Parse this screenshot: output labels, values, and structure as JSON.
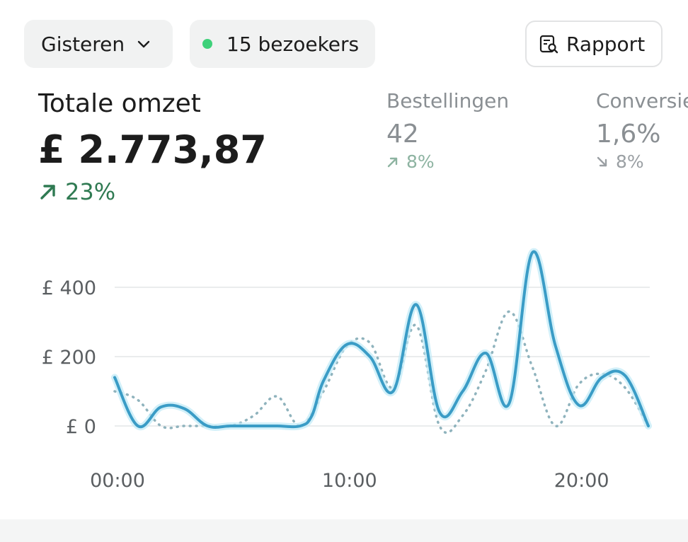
{
  "controls": {
    "date_range": "Gisteren",
    "visitors": "15 bezoekers",
    "report_button": "Rapport",
    "visitors_dot_color": "#3ed17a"
  },
  "metrics": {
    "main": {
      "label": "Totale omzet",
      "value": "£ 2.773,87",
      "delta": "23%",
      "trend": "up",
      "color": "#2f7a52"
    },
    "orders": {
      "label": "Bestellingen",
      "value": "42",
      "delta": "8%",
      "trend": "up"
    },
    "conversion": {
      "label": "Conversie",
      "value": "1,6%",
      "delta": "8%",
      "trend": "down"
    }
  },
  "chart_data": {
    "type": "line",
    "title": "",
    "xlabel": "",
    "ylabel": "",
    "x_ticks": [
      {
        "value": 0,
        "label": "00:00"
      },
      {
        "value": 10,
        "label": "10:00"
      },
      {
        "value": 20,
        "label": "20:00"
      }
    ],
    "y_ticks": [
      {
        "value": 0,
        "label": "£ 0"
      },
      {
        "value": 200,
        "label": "£ 200"
      },
      {
        "value": 400,
        "label": "£ 400"
      }
    ],
    "xlim": [
      0,
      23
    ],
    "ylim": [
      0,
      450
    ],
    "grid": true,
    "series": [
      {
        "style": "solid",
        "color": "#3a9cc6",
        "x": [
          0,
          1,
          2,
          3,
          4,
          5,
          6,
          7,
          8,
          8.5,
          9,
          10,
          11,
          12,
          13,
          14,
          15,
          16,
          17,
          18,
          19,
          20,
          21,
          22,
          23
        ],
        "values": [
          140,
          0,
          55,
          50,
          0,
          0,
          0,
          0,
          0,
          30,
          130,
          235,
          200,
          100,
          350,
          40,
          100,
          210,
          65,
          500,
          230,
          60,
          140,
          145,
          0
        ]
      },
      {
        "style": "dotted",
        "color": "#8fb3bd",
        "x": [
          0,
          1,
          2,
          3,
          4,
          5,
          6,
          7,
          8,
          9,
          10,
          11,
          12,
          13,
          14,
          15,
          16,
          17,
          18,
          19,
          20,
          21,
          22,
          23
        ],
        "values": [
          100,
          75,
          0,
          0,
          0,
          0,
          30,
          85,
          0,
          100,
          230,
          240,
          110,
          290,
          0,
          30,
          160,
          330,
          170,
          0,
          120,
          150,
          110,
          0
        ]
      }
    ]
  }
}
